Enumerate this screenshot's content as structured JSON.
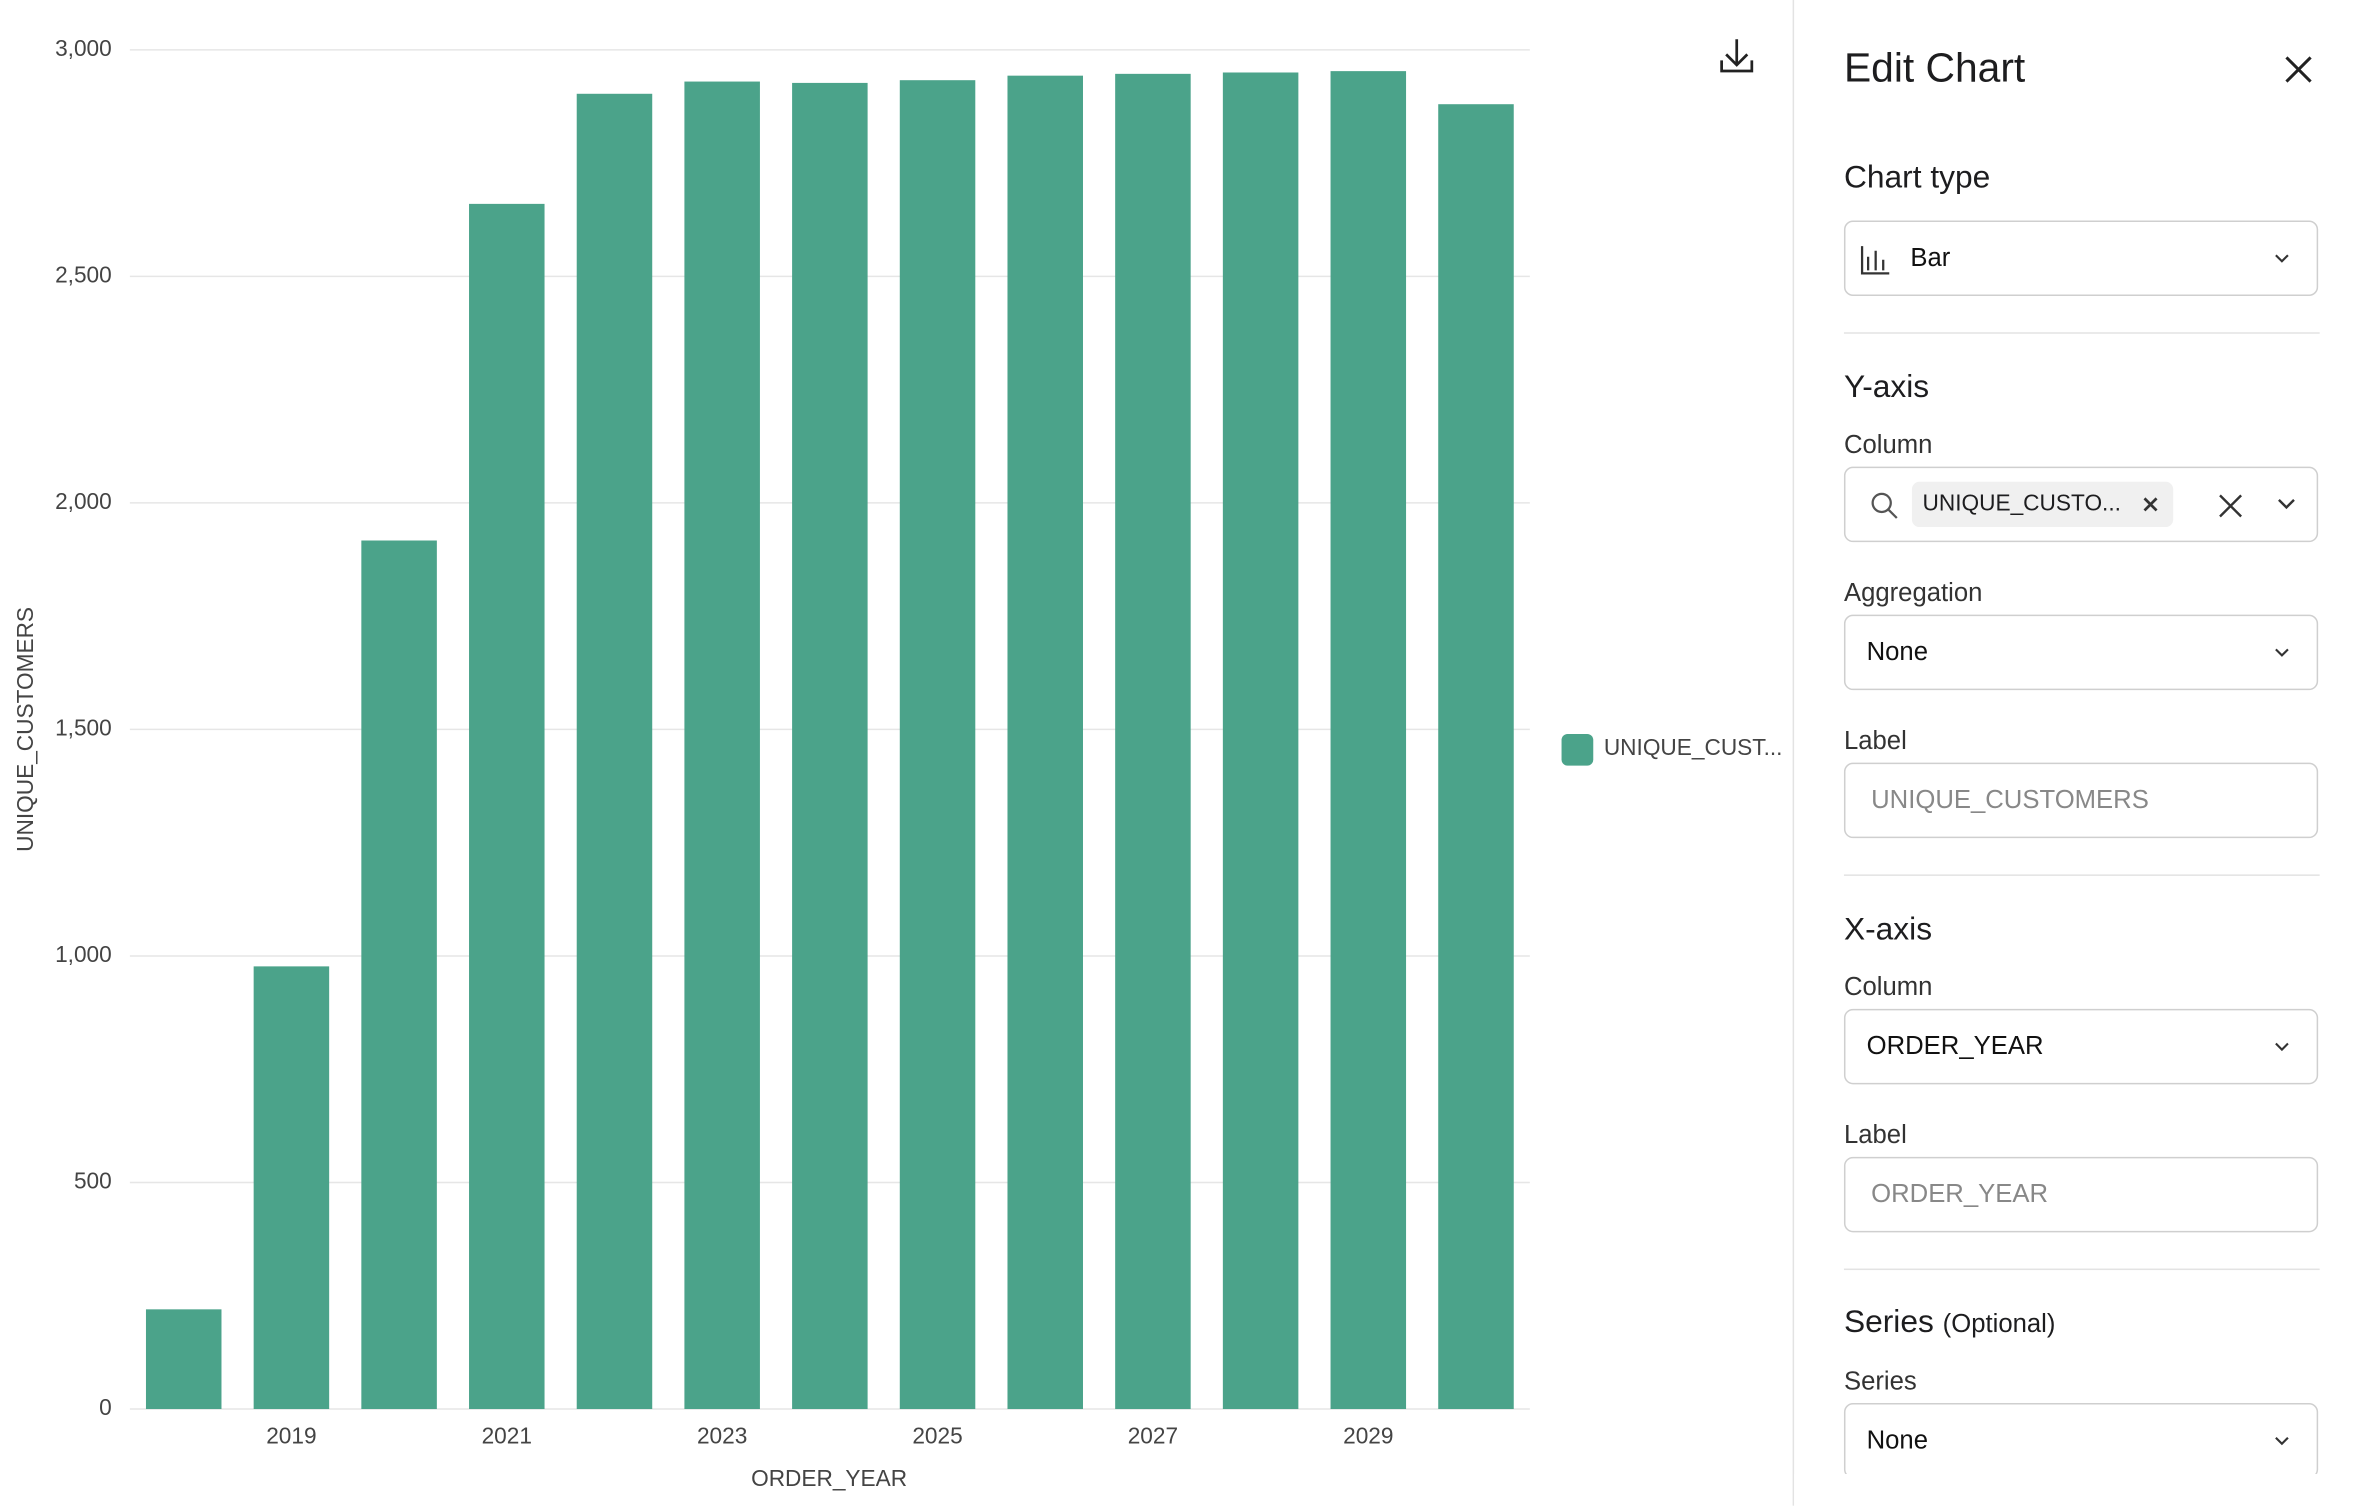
{
  "chart_data": {
    "type": "bar",
    "x_label": "ORDER_YEAR",
    "y_label": "UNIQUE_CUSTOMERS",
    "categories": [
      null,
      "2019",
      null,
      "2021",
      null,
      "2023",
      null,
      "2025",
      null,
      "2027",
      null,
      "2029",
      null
    ],
    "series": [
      {
        "name": "UNIQUE_CUST...",
        "color": "#4ba38a",
        "values": [
          220,
          977,
          1917,
          2660,
          2903,
          2930,
          2927,
          2933,
          2943,
          2947,
          2950,
          2953,
          2880
        ]
      }
    ],
    "ylim": [
      0,
      3000
    ],
    "yticks": [
      0,
      {
        "value": 500,
        "label": "500"
      },
      {
        "value": 1000,
        "label": "1,000"
      },
      {
        "value": 1500,
        "label": "1,500"
      },
      {
        "value": 2000,
        "label": "2,000"
      },
      {
        "value": 2500,
        "label": "2,500"
      },
      {
        "value": 3000,
        "label": "3,000"
      }
    ],
    "grid": true,
    "legend": "right"
  },
  "panel": {
    "title": "Edit Chart",
    "chart_type": {
      "heading": "Chart type",
      "value": "Bar"
    },
    "y_axis": {
      "heading": "Y-axis",
      "column_label": "Column",
      "column_value": "UNIQUE_CUSTO...",
      "aggregation_label": "Aggregation",
      "aggregation_value": "None",
      "label_label": "Label",
      "label_placeholder": "UNIQUE_CUSTOMERS"
    },
    "x_axis": {
      "heading": "X-axis",
      "column_label": "Column",
      "column_value": "ORDER_YEAR",
      "label_label": "Label",
      "label_placeholder": "ORDER_YEAR"
    },
    "series": {
      "heading": "Series",
      "optional": "(Optional)",
      "field_label": "Series",
      "value": "None"
    }
  }
}
